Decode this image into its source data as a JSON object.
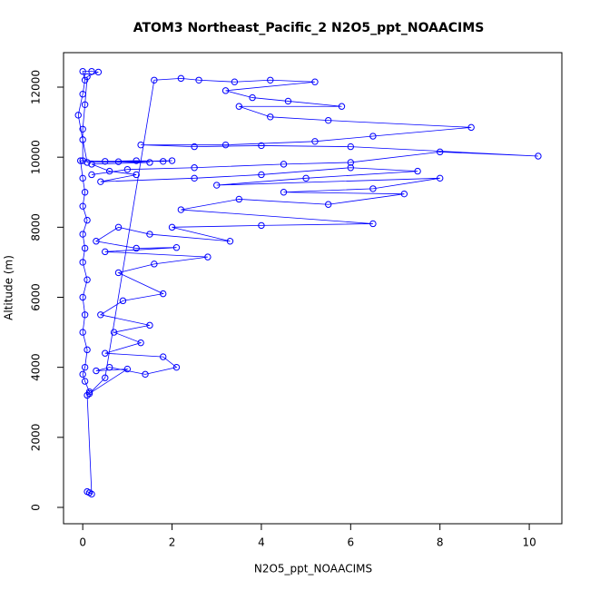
{
  "chart_data": {
    "type": "line",
    "title": "ATOM3 Northeast_Pacific_2 N2O5_ppt_NOAACIMS",
    "x_label": "N2O5_ppt_NOAACIMS",
    "y_label": "Altitude (m)",
    "color": "blue",
    "markers": true,
    "xlim": [
      -0.43,
      10.73
    ],
    "ylim": [
      -467,
      12985
    ],
    "xticks": [
      0,
      2,
      4,
      6,
      8,
      10
    ],
    "yticks": [
      0,
      2000,
      4000,
      6000,
      8000,
      10000,
      12000
    ],
    "x": [
      0.1,
      0.15,
      0.2,
      0.1,
      0.15,
      0.05,
      0,
      0.05,
      0.1,
      0,
      0.05,
      0,
      0.1,
      0,
      0.05,
      0,
      0.1,
      0,
      0.05,
      0,
      -0.05,
      0.5,
      1.2,
      1.8,
      2,
      0.1,
      0,
      -0.1,
      0,
      0.05,
      0,
      0.2,
      0.35,
      0.1,
      0.05,
      0,
      0,
      0.8,
      1.5,
      0.2,
      0.6,
      1.2,
      0.4,
      2.5,
      4,
      6,
      7.5,
      5,
      3,
      8,
      6.5,
      4.5,
      7.2,
      5.5,
      3.5,
      2.2,
      6.5,
      4,
      2,
      3.3,
      1.5,
      0.8,
      0.3,
      1.2,
      2.1,
      0.5,
      2.8,
      1.6,
      0.8,
      1.8,
      0.9,
      0.4,
      1.5,
      0.7,
      1.3,
      0.5,
      1.8,
      2.1,
      1.4,
      0.6,
      0.3,
      1,
      0.15,
      0.5,
      1.6,
      2.2,
      2.6,
      3.4,
      4.2,
      5.2,
      3.2,
      3.8,
      4.6,
      5.8,
      3.5,
      4.2,
      5.5,
      8.7,
      6.5,
      5.2,
      3.2,
      1.3,
      2.5,
      4,
      6,
      10.2,
      8,
      6,
      4.5,
      2.5,
      1,
      0.2
    ],
    "y": [
      450,
      420,
      380,
      3200,
      3300,
      3600,
      3800,
      4000,
      4500,
      5000,
      5500,
      6000,
      6500,
      7000,
      7400,
      7800,
      8200,
      8600,
      9000,
      9400,
      9900,
      9880,
      9900,
      9880,
      9900,
      9850,
      10500,
      11200,
      11800,
      12200,
      12450,
      12450,
      12430,
      12300,
      11500,
      10800,
      9900,
      9870,
      9850,
      9800,
      9600,
      9500,
      9300,
      9400,
      9500,
      9700,
      9600,
      9400,
      9200,
      9400,
      9100,
      9000,
      8950,
      8650,
      8800,
      8500,
      8100,
      8050,
      8000,
      7600,
      7800,
      8000,
      7600,
      7400,
      7420,
      7300,
      7150,
      6950,
      6700,
      6100,
      5900,
      5500,
      5200,
      5000,
      4700,
      4400,
      4300,
      4000,
      3800,
      4000,
      3900,
      3950,
      3250,
      3700,
      12200,
      12250,
      12200,
      12150,
      12200,
      12150,
      11900,
      11700,
      11600,
      11450,
      11450,
      11150,
      11050,
      10850,
      10600,
      10450,
      10350,
      10350,
      10300,
      10330,
      10300,
      10030,
      10150,
      9850,
      9800,
      9700,
      9650,
      9500
    ]
  }
}
